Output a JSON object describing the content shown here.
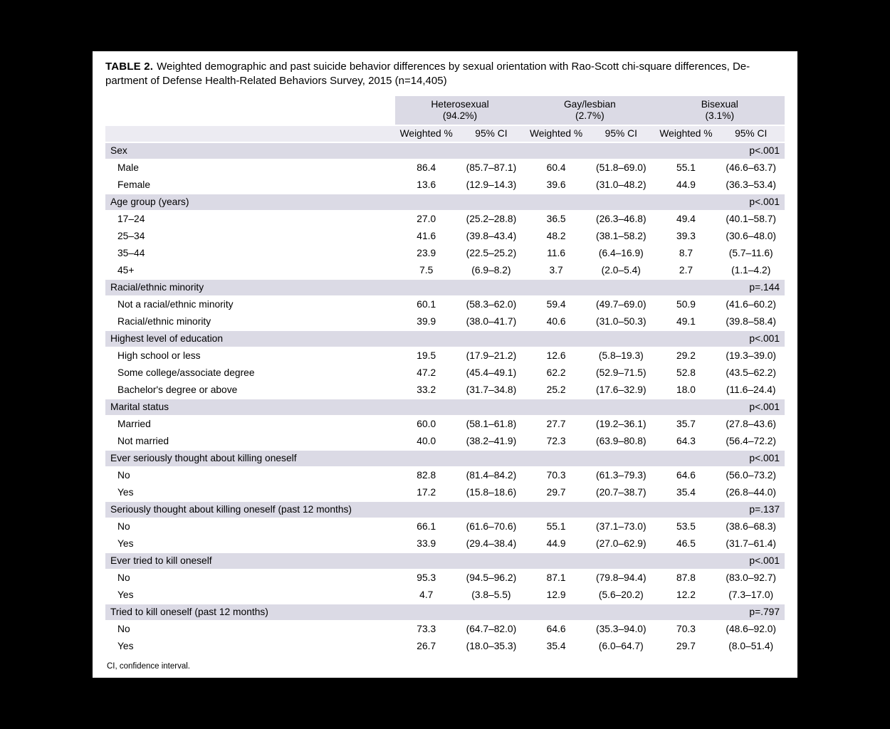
{
  "colors": {
    "page_background": "#000000",
    "paper_background": "#ffffff",
    "band": "#dbdae5",
    "subheader_band": "#ecebf2"
  },
  "header": {
    "label": "TABLE 2.",
    "line1": "Weighted demographic and past suicide behavior differences by sexual orientation with Rao-Scott chi-square differences, De-",
    "line2": "partment of Defense Health-Related Behaviors Survey, 2015 (n=14,405)"
  },
  "table": {
    "groups": [
      {
        "name": "Heterosexual",
        "pct": "(94.2%)"
      },
      {
        "name": "Gay/lesbian",
        "pct": "(2.7%)"
      },
      {
        "name": "Bisexual",
        "pct": "(3.1%)"
      }
    ],
    "subheaders": [
      "Weighted %",
      "95% CI",
      "Weighted %",
      "95% CI",
      "Weighted %",
      "95% CI"
    ],
    "sections": [
      {
        "label": "Sex",
        "p": "p<.001",
        "rows": [
          {
            "label": "Male",
            "values": [
              "86.4",
              "(85.7–87.1)",
              "60.4",
              "(51.8–69.0)",
              "55.1",
              "(46.6–63.7)"
            ]
          },
          {
            "label": "Female",
            "values": [
              "13.6",
              "(12.9–14.3)",
              "39.6",
              "(31.0–48.2)",
              "44.9",
              "(36.3–53.4)"
            ]
          }
        ]
      },
      {
        "label": "Age group (years)",
        "p": "p<.001",
        "rows": [
          {
            "label": "17–24",
            "values": [
              "27.0",
              "(25.2–28.8)",
              "36.5",
              "(26.3–46.8)",
              "49.4",
              "(40.1–58.7)"
            ]
          },
          {
            "label": "25–34",
            "values": [
              "41.6",
              "(39.8–43.4)",
              "48.2",
              "(38.1–58.2)",
              "39.3",
              "(30.6–48.0)"
            ]
          },
          {
            "label": "35–44",
            "values": [
              "23.9",
              "(22.5–25.2)",
              "11.6",
              "(6.4–16.9)",
              "8.7",
              "(5.7–11.6)"
            ]
          },
          {
            "label": "45+",
            "values": [
              "7.5",
              "(6.9–8.2)",
              "3.7",
              "(2.0–5.4)",
              "2.7",
              "(1.1–4.2)"
            ]
          }
        ]
      },
      {
        "label": "Racial/ethnic minority",
        "p": "p=.144",
        "rows": [
          {
            "label": "Not a racial/ethnic minority",
            "values": [
              "60.1",
              "(58.3–62.0)",
              "59.4",
              "(49.7–69.0)",
              "50.9",
              "(41.6–60.2)"
            ]
          },
          {
            "label": "Racial/ethnic minority",
            "values": [
              "39.9",
              "(38.0–41.7)",
              "40.6",
              "(31.0–50.3)",
              "49.1",
              "(39.8–58.4)"
            ]
          }
        ]
      },
      {
        "label": "Highest level of education",
        "p": "p<.001",
        "rows": [
          {
            "label": "High school or less",
            "values": [
              "19.5",
              "(17.9–21.2)",
              "12.6",
              "(5.8–19.3)",
              "29.2",
              "(19.3–39.0)"
            ]
          },
          {
            "label": "Some college/associate degree",
            "values": [
              "47.2",
              "(45.4–49.1)",
              "62.2",
              "(52.9–71.5)",
              "52.8",
              "(43.5–62.2)"
            ]
          },
          {
            "label": "Bachelor's degree or above",
            "values": [
              "33.2",
              "(31.7–34.8)",
              "25.2",
              "(17.6–32.9)",
              "18.0",
              "(11.6–24.4)"
            ]
          }
        ]
      },
      {
        "label": "Marital status",
        "p": "p<.001",
        "rows": [
          {
            "label": "Married",
            "values": [
              "60.0",
              "(58.1–61.8)",
              "27.7",
              "(19.2–36.1)",
              "35.7",
              "(27.8–43.6)"
            ]
          },
          {
            "label": "Not married",
            "values": [
              "40.0",
              "(38.2–41.9)",
              "72.3",
              "(63.9–80.8)",
              "64.3",
              "(56.4–72.2)"
            ]
          }
        ]
      },
      {
        "label": "Ever seriously thought about killing oneself",
        "p": "p<.001",
        "rows": [
          {
            "label": "No",
            "values": [
              "82.8",
              "(81.4–84.2)",
              "70.3",
              "(61.3–79.3)",
              "64.6",
              "(56.0–73.2)"
            ]
          },
          {
            "label": "Yes",
            "values": [
              "17.2",
              "(15.8–18.6)",
              "29.7",
              "(20.7–38.7)",
              "35.4",
              "(26.8–44.0)"
            ]
          }
        ]
      },
      {
        "label": "Seriously thought about killing oneself (past 12 months)",
        "p": "p=.137",
        "rows": [
          {
            "label": "No",
            "values": [
              "66.1",
              "(61.6–70.6)",
              "55.1",
              "(37.1–73.0)",
              "53.5",
              "(38.6–68.3)"
            ]
          },
          {
            "label": "Yes",
            "values": [
              "33.9",
              "(29.4–38.4)",
              "44.9",
              "(27.0–62.9)",
              "46.5",
              "(31.7–61.4)"
            ]
          }
        ]
      },
      {
        "label": "Ever tried to kill oneself",
        "p": "p<.001",
        "rows": [
          {
            "label": "No",
            "values": [
              "95.3",
              "(94.5–96.2)",
              "87.1",
              "(79.8–94.4)",
              "87.8",
              "(83.0–92.7)"
            ]
          },
          {
            "label": "Yes",
            "values": [
              "4.7",
              "(3.8–5.5)",
              "12.9",
              "(5.6–20.2)",
              "12.2",
              "(7.3–17.0)"
            ]
          }
        ]
      },
      {
        "label": "Tried to kill oneself (past 12 months)",
        "p": "p=.797",
        "rows": [
          {
            "label": "No",
            "values": [
              "73.3",
              "(64.7–82.0)",
              "64.6",
              "(35.3–94.0)",
              "70.3",
              "(48.6–92.0)"
            ]
          },
          {
            "label": "Yes",
            "values": [
              "26.7",
              "(18.0–35.3)",
              "35.4",
              "(6.0–64.7)",
              "29.7",
              "(8.0–51.4)"
            ]
          }
        ]
      }
    ]
  },
  "footnote": {
    "text": "CI, confidence interval."
  }
}
